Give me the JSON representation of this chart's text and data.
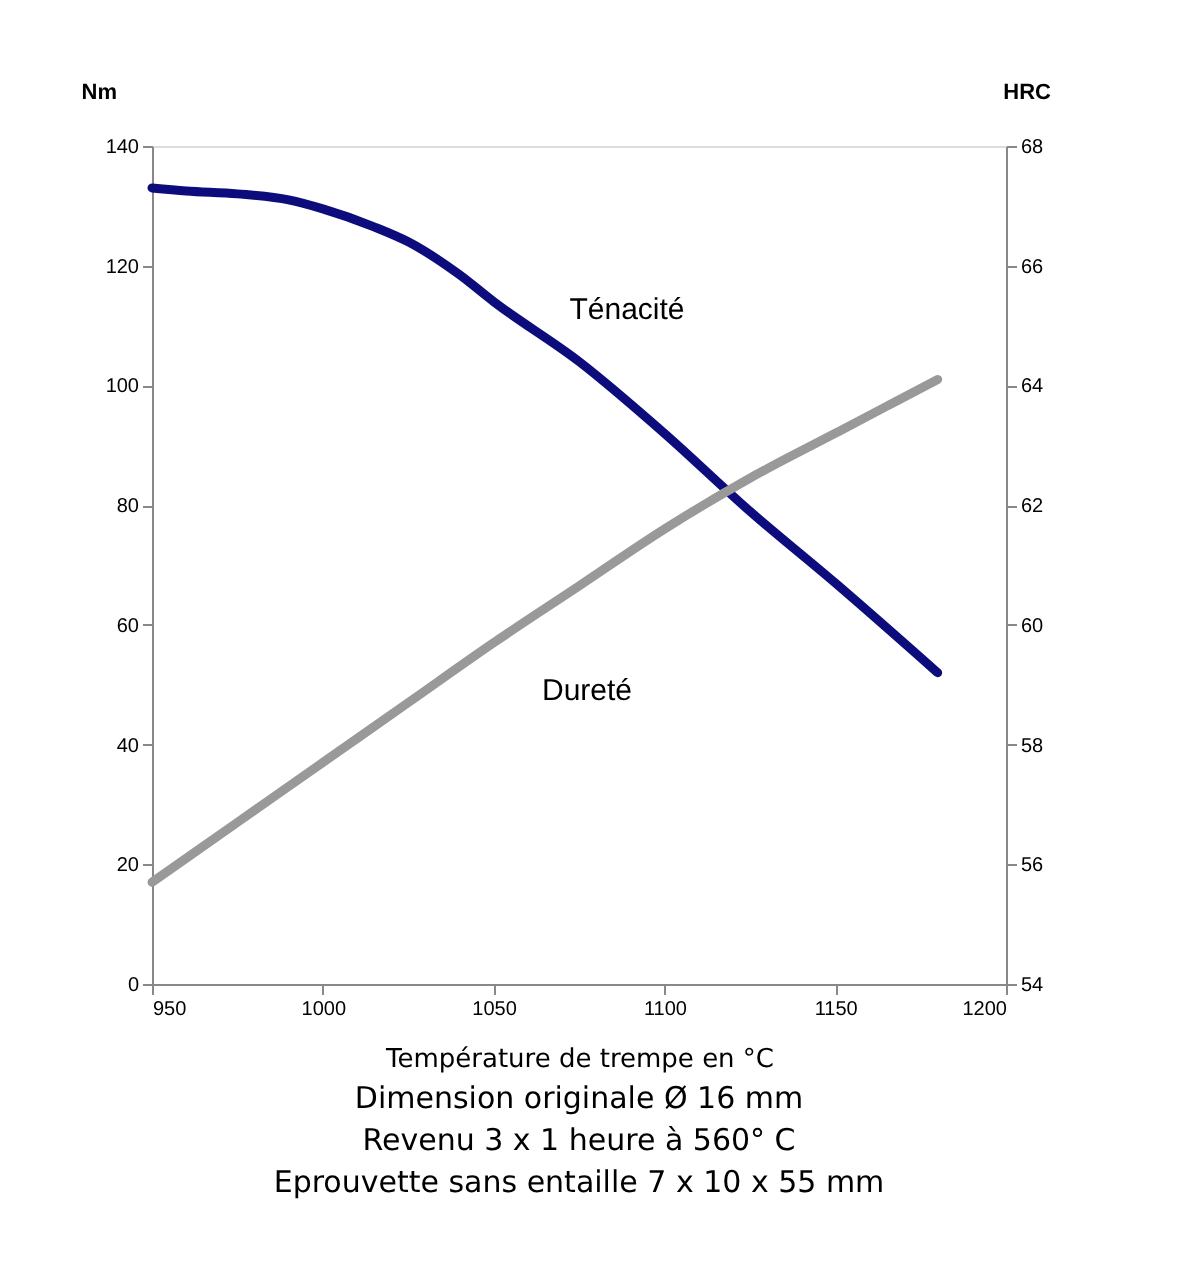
{
  "chart_data": {
    "type": "line",
    "xlabel": "Température de trempe en °C",
    "ylabel": "Nm",
    "y2label": "HRC",
    "xlim": [
      950,
      1200
    ],
    "xticks": [
      950,
      1000,
      1050,
      1100,
      1150,
      1200
    ],
    "ylim": [
      0,
      140
    ],
    "yticks": [
      0,
      20,
      40,
      60,
      80,
      100,
      120,
      140
    ],
    "y2lim": [
      54,
      68
    ],
    "y2ticks": [
      54,
      56,
      58,
      60,
      62,
      64,
      66,
      68
    ],
    "grid": false,
    "marker": "none",
    "line_style": "solid",
    "series": [
      {
        "name": "Ténacité",
        "color": "#0c0c7c",
        "x": [
          950,
          960,
          975,
          990,
          1000,
          1015,
          1025,
          1040,
          1050,
          1075,
          1100,
          1125,
          1150,
          1180
        ],
        "values": [
          133,
          132.5,
          132,
          131,
          129.5,
          126.5,
          124,
          118.5,
          114,
          104,
          92,
          79,
          67,
          52
        ]
      },
      {
        "name": "Dureté",
        "color": "#999999",
        "axis": "y2",
        "x": [
          950,
          975,
          1000,
          1025,
          1050,
          1075,
          1100,
          1125,
          1150,
          1165,
          1180
        ],
        "values": [
          55.7,
          56.7,
          57.7,
          58.7,
          59.7,
          60.65,
          61.6,
          62.45,
          63.2,
          63.65,
          64.1
        ]
      }
    ],
    "annotations": [
      "Dimension originale Ø 16 mm",
      "Revenu 3 x 1 heure à 560° C",
      "Eprouvette sans entaille 7 x 10 x 55 mm"
    ]
  }
}
